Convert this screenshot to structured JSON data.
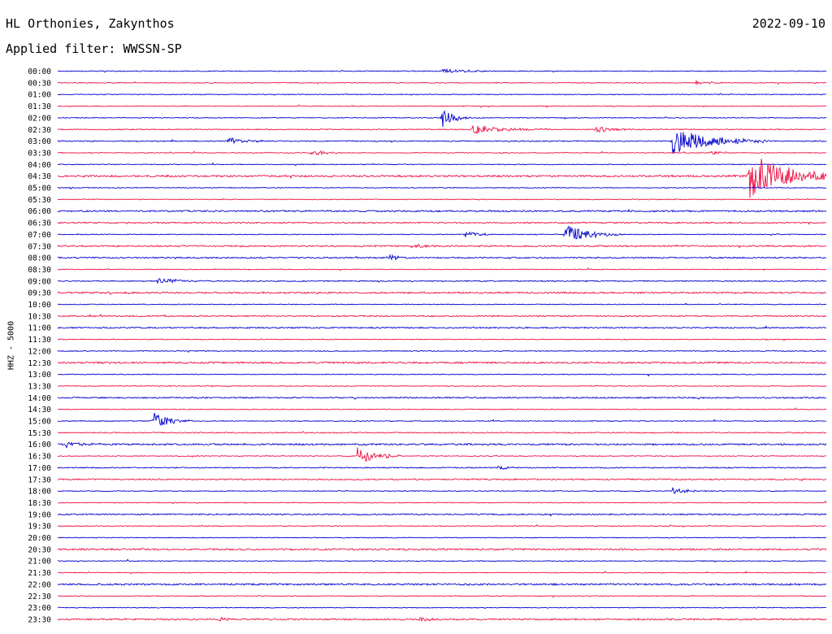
{
  "header": {
    "station": "HL Orthonies, Zakynthos",
    "date": "2022-09-10",
    "filter_text": "Applied filter: WWSSN-SP"
  },
  "colors": {
    "even": "#0000cc",
    "odd": "#ee1144"
  },
  "chart_data": {
    "type": "line",
    "title": "HL Orthonies, Zakynthos",
    "subtitle": "Applied filter: WWSSN-SP",
    "xlabel": "",
    "ylabel": "HHZ - 5000",
    "grid": false,
    "legend": "none",
    "x_unit": "fraction of 30-minute row",
    "rows": [
      {
        "label": "00:00",
        "noise": 0.6,
        "events": [
          {
            "x": 0.5,
            "amp": 3,
            "dur": 0.03
          }
        ]
      },
      {
        "label": "00:30",
        "noise": 0.6,
        "events": [
          {
            "x": 0.83,
            "amp": 3,
            "dur": 0.02
          }
        ]
      },
      {
        "label": "01:00",
        "noise": 0.6,
        "events": []
      },
      {
        "label": "01:30",
        "noise": 0.6,
        "events": []
      },
      {
        "label": "02:00",
        "noise": 0.6,
        "events": [
          {
            "x": 0.5,
            "amp": 12,
            "dur": 0.015
          }
        ]
      },
      {
        "label": "02:30",
        "noise": 0.7,
        "events": [
          {
            "x": 0.54,
            "amp": 6,
            "dur": 0.04
          },
          {
            "x": 0.7,
            "amp": 4,
            "dur": 0.02
          }
        ]
      },
      {
        "label": "03:00",
        "noise": 0.8,
        "events": [
          {
            "x": 0.22,
            "amp": 5,
            "dur": 0.02
          },
          {
            "x": 0.8,
            "amp": 16,
            "dur": 0.05
          }
        ]
      },
      {
        "label": "03:30",
        "noise": 0.6,
        "events": [
          {
            "x": 0.33,
            "amp": 5,
            "dur": 0.015
          },
          {
            "x": 0.85,
            "amp": 3,
            "dur": 0.015
          }
        ]
      },
      {
        "label": "04:00",
        "noise": 0.6,
        "events": []
      },
      {
        "label": "04:30",
        "noise": 1.4,
        "events": [
          {
            "x": 0.9,
            "amp": 28,
            "dur": 0.05
          }
        ]
      },
      {
        "label": "05:00",
        "noise": 0.6,
        "events": []
      },
      {
        "label": "05:30",
        "noise": 0.6,
        "events": []
      },
      {
        "label": "06:00",
        "noise": 1.2,
        "events": []
      },
      {
        "label": "06:30",
        "noise": 1.0,
        "events": []
      },
      {
        "label": "07:00",
        "noise": 0.6,
        "events": [
          {
            "x": 0.53,
            "amp": 4,
            "dur": 0.02
          },
          {
            "x": 0.66,
            "amp": 12,
            "dur": 0.03
          }
        ]
      },
      {
        "label": "07:30",
        "noise": 1.1,
        "events": [
          {
            "x": 0.46,
            "amp": 3,
            "dur": 0.015
          }
        ]
      },
      {
        "label": "08:00",
        "noise": 1.0,
        "events": [
          {
            "x": 0.43,
            "amp": 4,
            "dur": 0.015
          }
        ]
      },
      {
        "label": "08:30",
        "noise": 0.6,
        "events": []
      },
      {
        "label": "09:00",
        "noise": 0.8,
        "events": [
          {
            "x": 0.13,
            "amp": 4,
            "dur": 0.03
          }
        ]
      },
      {
        "label": "09:30",
        "noise": 1.2,
        "events": []
      },
      {
        "label": "10:00",
        "noise": 0.6,
        "events": []
      },
      {
        "label": "10:30",
        "noise": 1.0,
        "events": []
      },
      {
        "label": "11:00",
        "noise": 1.0,
        "events": []
      },
      {
        "label": "11:30",
        "noise": 0.6,
        "events": []
      },
      {
        "label": "12:00",
        "noise": 0.7,
        "events": []
      },
      {
        "label": "12:30",
        "noise": 1.3,
        "events": []
      },
      {
        "label": "13:00",
        "noise": 0.6,
        "events": []
      },
      {
        "label": "13:30",
        "noise": 0.6,
        "events": []
      },
      {
        "label": "14:00",
        "noise": 1.0,
        "events": []
      },
      {
        "label": "14:30",
        "noise": 0.6,
        "events": []
      },
      {
        "label": "15:00",
        "noise": 0.6,
        "events": [
          {
            "x": 0.125,
            "amp": 11,
            "dur": 0.02
          }
        ]
      },
      {
        "label": "15:30",
        "noise": 0.8,
        "events": []
      },
      {
        "label": "16:00",
        "noise": 1.2,
        "events": [
          {
            "x": 0.01,
            "amp": 4,
            "dur": 0.02
          }
        ]
      },
      {
        "label": "16:30",
        "noise": 0.6,
        "events": [
          {
            "x": 0.39,
            "amp": 11,
            "dur": 0.025
          }
        ]
      },
      {
        "label": "17:00",
        "noise": 0.8,
        "events": [
          {
            "x": 0.57,
            "amp": 3,
            "dur": 0.015
          }
        ]
      },
      {
        "label": "17:30",
        "noise": 1.0,
        "events": []
      },
      {
        "label": "18:00",
        "noise": 0.6,
        "events": [
          {
            "x": 0.8,
            "amp": 4,
            "dur": 0.02
          }
        ]
      },
      {
        "label": "18:30",
        "noise": 0.6,
        "events": []
      },
      {
        "label": "19:00",
        "noise": 1.0,
        "events": []
      },
      {
        "label": "19:30",
        "noise": 0.6,
        "events": []
      },
      {
        "label": "20:00",
        "noise": 0.6,
        "events": []
      },
      {
        "label": "20:30",
        "noise": 1.3,
        "events": []
      },
      {
        "label": "21:00",
        "noise": 0.6,
        "events": []
      },
      {
        "label": "21:30",
        "noise": 0.6,
        "events": []
      },
      {
        "label": "22:00",
        "noise": 1.3,
        "events": []
      },
      {
        "label": "22:30",
        "noise": 0.6,
        "events": []
      },
      {
        "label": "23:00",
        "noise": 0.6,
        "events": []
      },
      {
        "label": "23:30",
        "noise": 1.2,
        "events": [
          {
            "x": 0.21,
            "amp": 3,
            "dur": 0.015
          },
          {
            "x": 0.47,
            "amp": 5,
            "dur": 0.01
          }
        ]
      }
    ]
  }
}
